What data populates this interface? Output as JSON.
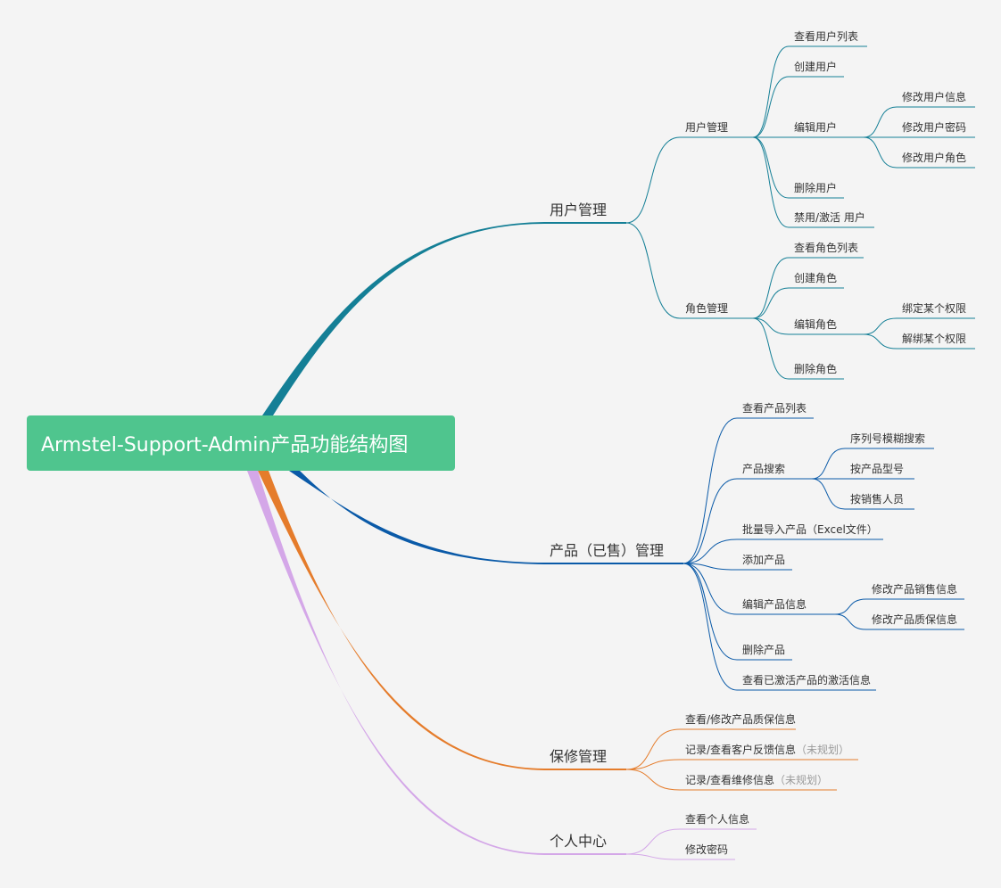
{
  "root": {
    "label": "Armstel-Support-Admin产品功能结构图",
    "color": "#4fc58e"
  },
  "branches": [
    {
      "label": "用户管理",
      "color": "#147f96",
      "children": [
        {
          "label": "用户管理",
          "children": [
            {
              "label": "查看用户列表"
            },
            {
              "label": "创建用户"
            },
            {
              "label": "编辑用户",
              "children": [
                {
                  "label": "修改用户信息"
                },
                {
                  "label": "修改用户密码"
                },
                {
                  "label": "修改用户角色"
                }
              ]
            },
            {
              "label": "删除用户"
            },
            {
              "label": "禁用/激活 用户"
            }
          ]
        },
        {
          "label": "角色管理",
          "children": [
            {
              "label": "查看角色列表"
            },
            {
              "label": "创建角色"
            },
            {
              "label": "编辑角色",
              "children": [
                {
                  "label": "绑定某个权限"
                },
                {
                  "label": "解绑某个权限"
                }
              ]
            },
            {
              "label": "删除角色"
            }
          ]
        }
      ]
    },
    {
      "label": "产品（已售）管理",
      "color": "#0a5aa8",
      "children": [
        {
          "label": "查看产品列表"
        },
        {
          "label": "产品搜索",
          "children": [
            {
              "label": "序列号模糊搜索"
            },
            {
              "label": "按产品型号"
            },
            {
              "label": "按销售人员"
            }
          ]
        },
        {
          "label": "批量导入产品（Excel文件）"
        },
        {
          "label": "添加产品"
        },
        {
          "label": "编辑产品信息",
          "children": [
            {
              "label": "修改产品销售信息"
            },
            {
              "label": "修改产品质保信息"
            }
          ]
        },
        {
          "label": "删除产品"
        },
        {
          "label": "查看已激活产品的激活信息"
        }
      ]
    },
    {
      "label": "保修管理",
      "color": "#e57c2b",
      "children": [
        {
          "label": "查看/修改产品质保信息"
        },
        {
          "label": "记录/查看客户反馈信息",
          "note": "（未规划）"
        },
        {
          "label": "记录/查看维修信息",
          "note": "（未规划）"
        }
      ]
    },
    {
      "label": "个人中心",
      "color": "#d4a7e8",
      "children": [
        {
          "label": "查看个人信息"
        },
        {
          "label": "修改密码"
        }
      ]
    }
  ]
}
